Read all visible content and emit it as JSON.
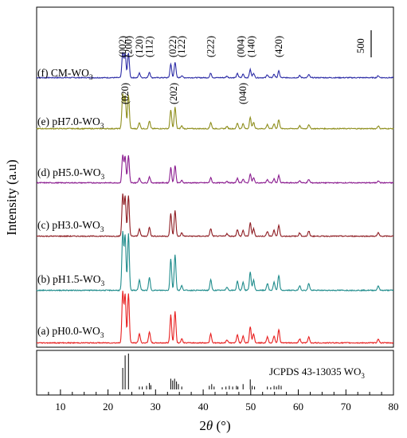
{
  "chart_data": {
    "type": "line",
    "xlabel": "2θ (°)",
    "xlabel_parts": {
      "symbol": "2",
      "italic": "θ",
      "unit": " (°)"
    },
    "ylabel": "Intensity (a.u)",
    "xlim": [
      5,
      80
    ],
    "x_ticks": [
      10,
      20,
      30,
      40,
      50,
      60,
      70,
      80
    ],
    "grid": false,
    "scale_bar_label": "500",
    "series": [
      {
        "name": "(f) CM-WO3",
        "label_main": "(f) CM-WO",
        "label_sub": "3",
        "color": "#2c2ca6",
        "offset": 5,
        "peak_scale": 0.55
      },
      {
        "name": "(e) pH7.0-WO3",
        "label_main": "(e) pH7.0-WO",
        "label_sub": "3",
        "color": "#8e8e1c",
        "offset": 4,
        "peak_scale": 0.75
      },
      {
        "name": "(d) pH5.0-WO3",
        "label_main": "(d) pH5.0-WO",
        "label_sub": "3",
        "color": "#8a1b8f",
        "offset": 3,
        "peak_scale": 0.6
      },
      {
        "name": "(c) pH3.0-WO3",
        "label_main": "(c) pH3.0-WO",
        "label_sub": "3",
        "color": "#8e1c22",
        "offset": 2,
        "peak_scale": 0.9
      },
      {
        "name": "(b) pH1.5-WO3",
        "label_main": "(b) pH1.5-WO",
        "label_sub": "3",
        "color": "#1f8c8c",
        "offset": 1,
        "peak_scale": 1.25
      },
      {
        "name": "(a) pH0.0-WO3",
        "label_main": "(a) pH0.0-WO",
        "label_sub": "3",
        "color": "#e81e1e",
        "offset": 0,
        "peak_scale": 1.1
      }
    ],
    "peaks": [
      {
        "x": 23.1,
        "h": 1.0
      },
      {
        "x": 23.6,
        "h": 0.95
      },
      {
        "x": 24.3,
        "h": 0.98
      },
      {
        "x": 26.6,
        "h": 0.18
      },
      {
        "x": 28.7,
        "h": 0.22
      },
      {
        "x": 33.2,
        "h": 0.55
      },
      {
        "x": 34.1,
        "h": 0.62
      },
      {
        "x": 35.5,
        "h": 0.08
      },
      {
        "x": 41.6,
        "h": 0.18
      },
      {
        "x": 45.0,
        "h": 0.06
      },
      {
        "x": 47.2,
        "h": 0.16
      },
      {
        "x": 48.4,
        "h": 0.14
      },
      {
        "x": 49.9,
        "h": 0.32
      },
      {
        "x": 50.6,
        "h": 0.18
      },
      {
        "x": 53.5,
        "h": 0.12
      },
      {
        "x": 54.9,
        "h": 0.14
      },
      {
        "x": 55.9,
        "h": 0.26
      },
      {
        "x": 60.3,
        "h": 0.08
      },
      {
        "x": 62.2,
        "h": 0.12
      },
      {
        "x": 76.8,
        "h": 0.08
      }
    ],
    "peak_labels": [
      {
        "text": "(002)",
        "x": 23.1,
        "row": "f"
      },
      {
        "text": "(200)",
        "x": 24.3,
        "row": "f"
      },
      {
        "text": "(120)",
        "x": 26.6,
        "row": "f"
      },
      {
        "text": "(112)",
        "x": 28.7,
        "row": "f"
      },
      {
        "text": "(022)",
        "x": 33.6,
        "row": "f"
      },
      {
        "text": "(122)",
        "x": 35.5,
        "row": "f"
      },
      {
        "text": "(222)",
        "x": 41.6,
        "row": "f"
      },
      {
        "text": "(004)",
        "x": 47.9,
        "row": "f"
      },
      {
        "text": "(140)",
        "x": 50.1,
        "row": "f"
      },
      {
        "text": "(420)",
        "x": 55.9,
        "row": "f"
      },
      {
        "text": "(020)",
        "x": 23.6,
        "row": "e"
      },
      {
        "text": "(202)",
        "x": 33.8,
        "row": "e"
      },
      {
        "text": "(040)",
        "x": 48.4,
        "row": "e"
      }
    ],
    "reference": {
      "label": "JCPDS 43-13035 WO",
      "label_sub": "3",
      "lines": [
        {
          "x": 23.1,
          "h": 0.6
        },
        {
          "x": 23.6,
          "h": 0.95
        },
        {
          "x": 24.3,
          "h": 1.0
        },
        {
          "x": 26.6,
          "h": 0.08
        },
        {
          "x": 27.2,
          "h": 0.08
        },
        {
          "x": 28.1,
          "h": 0.1
        },
        {
          "x": 28.7,
          "h": 0.18
        },
        {
          "x": 29.0,
          "h": 0.12
        },
        {
          "x": 33.2,
          "h": 0.3
        },
        {
          "x": 33.6,
          "h": 0.25
        },
        {
          "x": 34.0,
          "h": 0.3
        },
        {
          "x": 34.4,
          "h": 0.22
        },
        {
          "x": 34.8,
          "h": 0.15
        },
        {
          "x": 35.5,
          "h": 0.08
        },
        {
          "x": 41.3,
          "h": 0.1
        },
        {
          "x": 41.8,
          "h": 0.15
        },
        {
          "x": 42.3,
          "h": 0.08
        },
        {
          "x": 44.0,
          "h": 0.06
        },
        {
          "x": 44.8,
          "h": 0.08
        },
        {
          "x": 45.5,
          "h": 0.1
        },
        {
          "x": 46.2,
          "h": 0.08
        },
        {
          "x": 47.0,
          "h": 0.1
        },
        {
          "x": 47.3,
          "h": 0.08
        },
        {
          "x": 48.4,
          "h": 0.15
        },
        {
          "x": 49.9,
          "h": 0.28
        },
        {
          "x": 50.3,
          "h": 0.1
        },
        {
          "x": 50.8,
          "h": 0.08
        },
        {
          "x": 53.5,
          "h": 0.08
        },
        {
          "x": 54.2,
          "h": 0.06
        },
        {
          "x": 54.9,
          "h": 0.1
        },
        {
          "x": 55.4,
          "h": 0.08
        },
        {
          "x": 55.9,
          "h": 0.12
        },
        {
          "x": 56.4,
          "h": 0.1
        }
      ]
    }
  }
}
